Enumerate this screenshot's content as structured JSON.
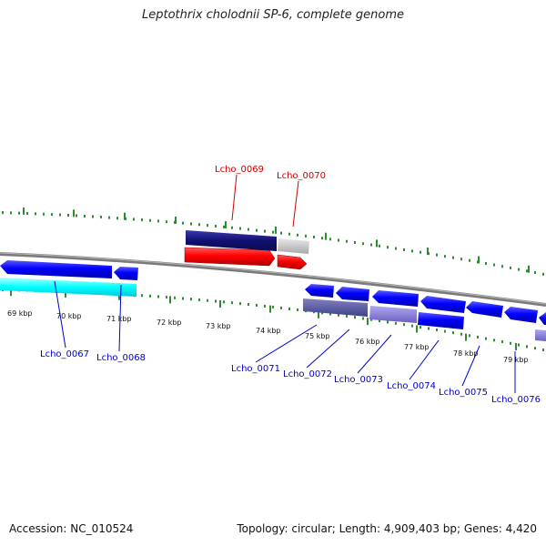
{
  "title": "Leptothrix cholodnii SP-6, complete genome",
  "accession": "Accession: NC_010524",
  "summary": "Topology: circular; Length: 4,909,403 bp; Genes: 4,420",
  "kbp_labels": [
    "69 kbp",
    "70 kbp",
    "71 kbp",
    "72 kbp",
    "73 kbp",
    "74 kbp",
    "75 kbp",
    "76 kbp",
    "77 kbp",
    "78 kbp",
    "79 kbp"
  ],
  "genes": {
    "forward": [
      {
        "name": "Lcho_0069",
        "color": "#cc0000"
      },
      {
        "name": "Lcho_0070",
        "color": "#cc0000"
      }
    ],
    "reverse": [
      {
        "name": "Lcho_0067",
        "color": "#0000cc"
      },
      {
        "name": "Lcho_0068",
        "color": "#0000cc"
      },
      {
        "name": "Lcho_0071",
        "color": "#0000cc"
      },
      {
        "name": "Lcho_0072",
        "color": "#0000cc"
      },
      {
        "name": "Lcho_0073",
        "color": "#0000cc"
      },
      {
        "name": "Lcho_0074",
        "color": "#0000cc"
      },
      {
        "name": "Lcho_0075",
        "color": "#0000cc"
      },
      {
        "name": "Lcho_0076",
        "color": "#0000cc"
      }
    ]
  },
  "colors": {
    "backbone": "#808080",
    "ticks": "#2e8b2e",
    "forward_cds": "#ff0000",
    "reverse_cds": "#0000ff",
    "cog_navy": "#1a1a80",
    "cog_grey": "#c0c0c0",
    "cog_cyan": "#00ffff",
    "cog_slate": "#5a5aa0",
    "cog_lavender": "#8a80d8"
  }
}
